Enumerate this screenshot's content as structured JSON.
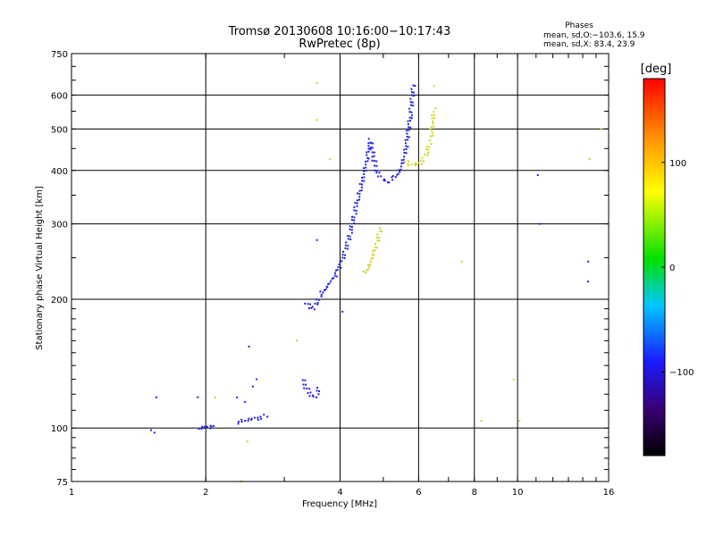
{
  "chart_data": {
    "type": "scatter",
    "title": "Tromsø 20130608 10:16:00−10:17:43",
    "subtitle": "RwPretec (8p)",
    "xlabel": "Frequency [MHz]",
    "ylabel": "Stationary phase Virtual Height [km]",
    "x_scale": "log",
    "y_scale": "log",
    "xlim": [
      1,
      16
    ],
    "ylim": [
      75,
      750
    ],
    "x_ticks": [
      1,
      2,
      4,
      6,
      8,
      10,
      16
    ],
    "x_tick_labels": [
      "1",
      "2",
      "4",
      "6",
      "8",
      "10",
      "16"
    ],
    "y_ticks": [
      75,
      100,
      200,
      300,
      400,
      500,
      600,
      750
    ],
    "y_tick_labels": [
      "75",
      "100",
      "200",
      "300",
      "400",
      "500",
      "600",
      "750"
    ],
    "grid": true,
    "phases_box": {
      "title": "Phases",
      "line_o": "mean, sd,O:−103.6, 15.9",
      "line_x": "mean, sd,X:  83.4, 23.9"
    },
    "colorbar": {
      "label": "[deg]",
      "range": [
        -180,
        180
      ],
      "ticks": [
        100,
        0,
        -100
      ],
      "tick_labels": [
        "100",
        "0",
        "−100"
      ]
    },
    "series": [
      {
        "name": "O",
        "color": "#2020e0",
        "trace_segments": [
          {
            "x": [
              1.52,
              1.55
            ],
            "y": [
              98,
              98
            ]
          },
          {
            "x": [
              1.93,
              2.0,
              2.05,
              2.1
            ],
            "y": [
              100,
              101,
              100,
              101
            ]
          },
          {
            "x": [
              2.35,
              2.45,
              2.55,
              2.65,
              2.75
            ],
            "y": [
              103,
              104,
              105,
              106,
              107
            ]
          },
          {
            "x": [
              3.35,
              3.4,
              3.45,
              3.5,
              3.55,
              3.62
            ],
            "y": [
              197,
              193,
              190,
              192,
              197,
              205
            ]
          },
          {
            "x": [
              3.62,
              3.75,
              3.9,
              4.05,
              4.2,
              4.35,
              4.5,
              4.6,
              4.68
            ],
            "y": [
              205,
              215,
              228,
              248,
              280,
              330,
              380,
              430,
              470
            ]
          },
          {
            "x": [
              4.68,
              4.75,
              4.85,
              5.0,
              5.15,
              5.3,
              5.45,
              5.6,
              5.75,
              5.85
            ],
            "y": [
              470,
              430,
              395,
              380,
              378,
              385,
              400,
              440,
              540,
              640
            ]
          },
          {
            "x": [
              3.3,
              3.35,
              3.42,
              3.5,
              3.55,
              3.6
            ],
            "y": [
              130,
              125,
              120,
              118,
              120,
              125
            ]
          }
        ],
        "points": [
          {
            "x": 1.55,
            "y": 118
          },
          {
            "x": 1.92,
            "y": 118
          },
          {
            "x": 2.35,
            "y": 118
          },
          {
            "x": 2.45,
            "y": 115
          },
          {
            "x": 2.5,
            "y": 155
          },
          {
            "x": 2.55,
            "y": 125
          },
          {
            "x": 2.6,
            "y": 130
          },
          {
            "x": 3.55,
            "y": 275
          },
          {
            "x": 4.05,
            "y": 187
          },
          {
            "x": 11.2,
            "y": 300
          },
          {
            "x": 11.1,
            "y": 390
          },
          {
            "x": 14.4,
            "y": 220
          },
          {
            "x": 14.4,
            "y": 245
          }
        ]
      },
      {
        "name": "X",
        "color": "#d0d020",
        "trace_segments": [
          {
            "x": [
              4.55,
              4.65,
              4.75,
              4.85,
              4.95
            ],
            "y": [
              230,
              240,
              255,
              275,
              295
            ]
          },
          {
            "x": [
              5.6,
              5.75,
              5.9,
              6.1,
              6.25,
              6.4
            ],
            "y": [
              420,
              415,
              410,
              420,
              440,
              470
            ]
          },
          {
            "x": [
              6.4,
              6.45,
              6.5
            ],
            "y": [
              480,
              520,
              560
            ]
          }
        ],
        "points": [
          {
            "x": 3.55,
            "y": 640
          },
          {
            "x": 3.55,
            "y": 525
          },
          {
            "x": 3.2,
            "y": 160
          },
          {
            "x": 3.8,
            "y": 425
          },
          {
            "x": 2.1,
            "y": 118
          },
          {
            "x": 2.4,
            "y": 75
          },
          {
            "x": 2.48,
            "y": 93
          },
          {
            "x": 8.3,
            "y": 104
          },
          {
            "x": 9.8,
            "y": 130
          },
          {
            "x": 10.1,
            "y": 104
          },
          {
            "x": 14.5,
            "y": 425
          },
          {
            "x": 15.4,
            "y": 500
          },
          {
            "x": 7.5,
            "y": 245
          },
          {
            "x": 6.5,
            "y": 630
          }
        ]
      }
    ]
  }
}
